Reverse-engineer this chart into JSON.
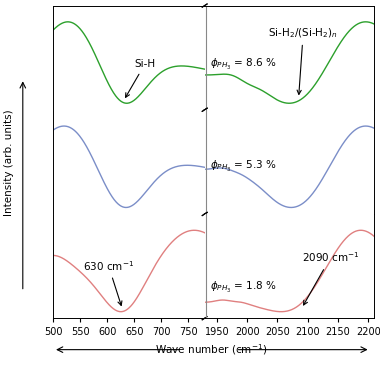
{
  "bg_color": "#ffffff",
  "panel_bg": "#ffffff",
  "colors": {
    "green": "#2ca02c",
    "blue": "#7b8ec8",
    "red": "#e08080"
  },
  "labels": {
    "phi_top": "$\\phi_{PH_3}$ = 8.6 %",
    "phi_mid": "$\\phi_{PH_3}$ = 5.3 %",
    "phi_bot": "$\\phi_{PH_3}$ = 1.8 %",
    "si_h": "Si-H",
    "si_h2": "Si-H$_2$/(Si-H$_2$)$_n$",
    "peak630": "630 cm$^{-1}$",
    "peak2090": "2090 cm$^{-1}$",
    "ylabel": "Intensity (arb. units)",
    "xlabel": "Wave number (cm$^{-1}$)"
  },
  "xlim_left": [
    500,
    780
  ],
  "xlim_right": [
    1930,
    2210
  ],
  "xticks_left": [
    500,
    550,
    600,
    650,
    700,
    750
  ],
  "xticks_right": [
    1950,
    2000,
    2050,
    2100,
    2150,
    2200
  ],
  "fontsize": 7.5
}
